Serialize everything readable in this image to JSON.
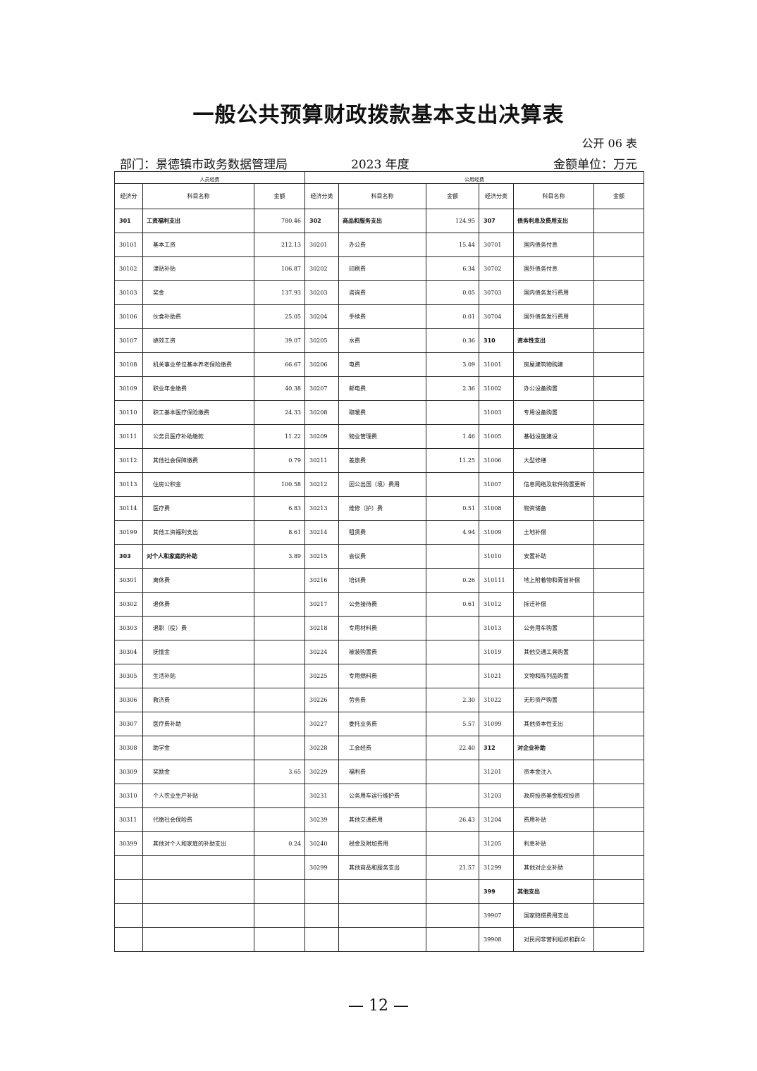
{
  "title": "一般公共预算财政拨款基本支出决算表",
  "table_no": "公开 06 表",
  "department": "部门：景德镇市政务数据管理局",
  "year": "2023 年度",
  "unit": "金额单位：万元",
  "groups": {
    "personnel": "人员经费",
    "public": "公用经费"
  },
  "headers": [
    "经济分",
    "科目名称",
    "金额",
    "经济分类",
    "科目名称",
    "金额",
    "经济分类",
    "科目名称",
    "金额"
  ],
  "rows": [
    {
      "bold": [
        0,
        1,
        3,
        4,
        6,
        7
      ],
      "c": [
        "301",
        "工资福利支出",
        "780.46",
        "302",
        "商品和服务支出",
        "124.95",
        "307",
        "债务利息及费用支出",
        ""
      ]
    },
    {
      "c": [
        "30101",
        "基本工资",
        "212.13",
        "30201",
        "办公费",
        "15.44",
        "30701",
        "国内债务付息",
        ""
      ]
    },
    {
      "c": [
        "30102",
        "津贴补贴",
        "106.87",
        "30202",
        "印刷费",
        "6.34",
        "30702",
        "国外债务付息",
        ""
      ]
    },
    {
      "c": [
        "30103",
        "奖金",
        "137.93",
        "30203",
        "咨询费",
        "0.05",
        "30703",
        "国内债务发行费用",
        ""
      ]
    },
    {
      "c": [
        "30106",
        "伙食补助费",
        "25.05",
        "30204",
        "手续费",
        "0.01",
        "30704",
        "国外债务发行费用",
        ""
      ]
    },
    {
      "bold": [
        6,
        7
      ],
      "c": [
        "30107",
        "绩效工资",
        "39.07",
        "30205",
        "水费",
        "0.36",
        "310",
        "资本性支出",
        ""
      ]
    },
    {
      "c": [
        "30108",
        "机关事业单位基本养老保险缴费",
        "66.67",
        "30206",
        "电费",
        "3.09",
        "31001",
        "房屋建筑物购建",
        ""
      ]
    },
    {
      "c": [
        "30109",
        "职业年金缴费",
        "40.38",
        "30207",
        "邮电费",
        "2.36",
        "31002",
        "办公设备购置",
        ""
      ]
    },
    {
      "c": [
        "30110",
        "职工基本医疗保险缴费",
        "24.33",
        "30208",
        "取暖费",
        "",
        "31003",
        "专用设备购置",
        ""
      ]
    },
    {
      "c": [
        "30111",
        "公务员医疗补助缴款",
        "11.22",
        "30209",
        "物业管理费",
        "1.46",
        "31005",
        "基础设施建设",
        ""
      ]
    },
    {
      "c": [
        "30112",
        "其他社会保障缴费",
        "0.79",
        "30211",
        "差旅费",
        "11.25",
        "31006",
        "大型修缮",
        ""
      ]
    },
    {
      "c": [
        "30113",
        "住房公积金",
        "100.58",
        "30212",
        "因公出国（境）费用",
        "",
        "31007",
        "信息网络及软件购置更新",
        ""
      ]
    },
    {
      "c": [
        "30114",
        "医疗费",
        "6.83",
        "30213",
        "维修（护）费",
        "0.51",
        "31008",
        "物资储备",
        ""
      ]
    },
    {
      "c": [
        "30199",
        "其他工资福利支出",
        "8.61",
        "30214",
        "租赁费",
        "4.94",
        "31009",
        "土地补偿",
        ""
      ]
    },
    {
      "bold": [
        0,
        1
      ],
      "c": [
        "303",
        "对个人和家庭的补助",
        "3.89",
        "30215",
        "会议费",
        "",
        "31010",
        "安置补助",
        ""
      ]
    },
    {
      "c": [
        "30301",
        "离休费",
        "",
        "30216",
        "培训费",
        "0.26",
        "310111",
        "地上附着物和青苗补偿",
        ""
      ]
    },
    {
      "c": [
        "30302",
        "退休费",
        "",
        "30217",
        "公务接待费",
        "0.61",
        "31012",
        "拆迁补偿",
        ""
      ]
    },
    {
      "c": [
        "30303",
        "退职（役）费",
        "",
        "30218",
        "专用材料费",
        "",
        "31013",
        "公务用车购置",
        ""
      ]
    },
    {
      "c": [
        "30304",
        "抚恤金",
        "",
        "30224",
        "被装购置费",
        "",
        "31019",
        "其他交通工具购置",
        ""
      ]
    },
    {
      "c": [
        "30305",
        "生活补贴",
        "",
        "30225",
        "专用燃料费",
        "",
        "31021",
        "文物和陈列品购置",
        ""
      ]
    },
    {
      "c": [
        "30306",
        "救济费",
        "",
        "30226",
        "劳务费",
        "2.30",
        "31022",
        "无形资产购置",
        ""
      ]
    },
    {
      "c": [
        "30307",
        "医疗费补助",
        "",
        "30227",
        "委托业务费",
        "5.57",
        "31099",
        "其他资本性支出",
        ""
      ]
    },
    {
      "bold": [
        6,
        7
      ],
      "c": [
        "30308",
        "助学金",
        "",
        "30228",
        "工会经费",
        "22.40",
        "312",
        "对企业补助",
        ""
      ]
    },
    {
      "c": [
        "30309",
        "奖励金",
        "3.65",
        "30229",
        "福利费",
        "",
        "31201",
        "资本金注入",
        ""
      ]
    },
    {
      "c": [
        "30310",
        "个人农业生产补贴",
        "",
        "30231",
        "公务用车运行维护费",
        "",
        "31203",
        "政府投资基金股权投资",
        ""
      ]
    },
    {
      "c": [
        "30311",
        "代缴社会保险费",
        "",
        "30239",
        "其他交通费用",
        "26.43",
        "31204",
        "费用补贴",
        ""
      ]
    },
    {
      "c": [
        "30399",
        "其他对个人和家庭的补助支出",
        "0.24",
        "30240",
        "税金及附加费用",
        "",
        "31205",
        "利息补贴",
        ""
      ]
    },
    {
      "c": [
        "",
        "",
        "",
        "30299",
        "其他商品和服务支出",
        "21.57",
        "31299",
        "其他对企业补助",
        ""
      ]
    },
    {
      "bold": [
        6,
        7
      ],
      "c": [
        "",
        "",
        "",
        "",
        "",
        "",
        "399",
        "其他支出",
        ""
      ]
    },
    {
      "c": [
        "",
        "",
        "",
        "",
        "",
        "",
        "39907",
        "国家赔偿费用支出",
        ""
      ]
    },
    {
      "c": [
        "",
        "",
        "",
        "",
        "",
        "",
        "39908",
        "对民间非营利组织和群众",
        ""
      ]
    }
  ],
  "page_number": "— 12 —"
}
